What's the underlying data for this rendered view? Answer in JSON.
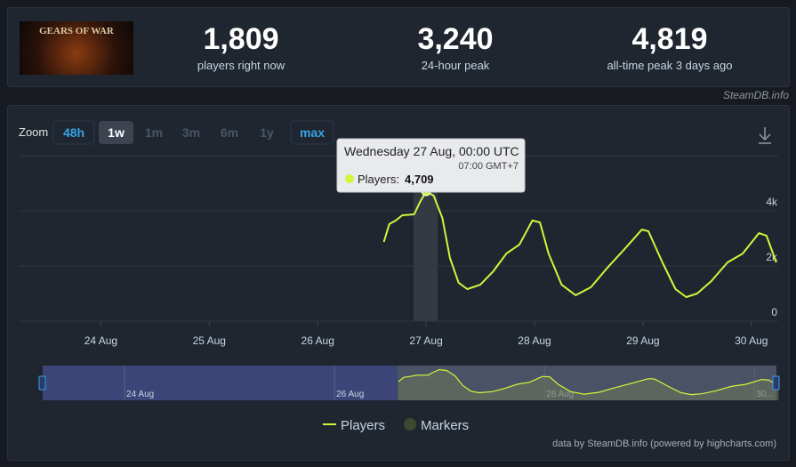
{
  "header": {
    "logo_text": "GEARS OF WAR",
    "stats": [
      {
        "value": "1,809",
        "label": "players right now"
      },
      {
        "value": "3,240",
        "label": "24-hour peak"
      },
      {
        "value": "4,819",
        "label": "all-time peak 3 days ago"
      }
    ],
    "watermark": "SteamDB.info"
  },
  "zoom": {
    "label": "Zoom",
    "buttons": [
      "48h",
      "1w",
      "1m",
      "3m",
      "6m",
      "1y",
      "max"
    ]
  },
  "chart_data": {
    "type": "line",
    "x": [
      26.61,
      26.66,
      26.72,
      26.78,
      26.89,
      26.94,
      27.0,
      27.07,
      27.15,
      27.22,
      27.3,
      27.38,
      27.5,
      27.62,
      27.74,
      27.86,
      27.98,
      28.05,
      28.13,
      28.25,
      28.38,
      28.52,
      28.68,
      28.83,
      28.99,
      29.05,
      29.18,
      29.3,
      29.4,
      29.5,
      29.63,
      29.78,
      29.92,
      30.07,
      30.14,
      30.23
    ],
    "series": [
      {
        "name": "Players",
        "color": "#d4f53c",
        "values": [
          2870,
          3520,
          3650,
          3840,
          3870,
          4290,
          4709,
          4550,
          3740,
          2290,
          1390,
          1160,
          1320,
          1810,
          2450,
          2770,
          3650,
          3580,
          2450,
          1320,
          940,
          1230,
          1970,
          2610,
          3320,
          3260,
          2130,
          1160,
          870,
          1000,
          1450,
          2130,
          2450,
          3190,
          3100,
          2130
        ]
      }
    ],
    "xlim": [
      23.25,
      30.33
    ],
    "xticks": [
      {
        "value": 24,
        "label": "24 Aug"
      },
      {
        "value": 25,
        "label": "25 Aug"
      },
      {
        "value": 26,
        "label": "26 Aug"
      },
      {
        "value": 27,
        "label": "27 Aug"
      },
      {
        "value": 28,
        "label": "28 Aug"
      },
      {
        "value": 29,
        "label": "29 Aug"
      },
      {
        "value": 30,
        "label": "30 Aug"
      }
    ],
    "ylim": [
      0,
      6000
    ],
    "yticks": [
      0,
      {
        "value": 2000,
        "label": "2k"
      },
      {
        "value": 4000,
        "label": "4k"
      }
    ],
    "grid": true
  },
  "tooltip": {
    "title": "Wednesday 27 Aug, 00:00 UTC",
    "subtitle": "07:00 GMT+7",
    "label": "Players:",
    "value": "4,709"
  },
  "navigator": {
    "xlim": [
      23.22,
      30.21
    ],
    "ticks": [
      {
        "value": 24,
        "label": "24 Aug"
      },
      {
        "value": 26,
        "label": "26 Aug"
      },
      {
        "value": 28,
        "label": "28 Aug"
      },
      {
        "value": 30,
        "label": "30..."
      }
    ]
  },
  "legend": {
    "markers": "Markers"
  },
  "credits": "data by SteamDB.info (powered by highcharts.com)"
}
